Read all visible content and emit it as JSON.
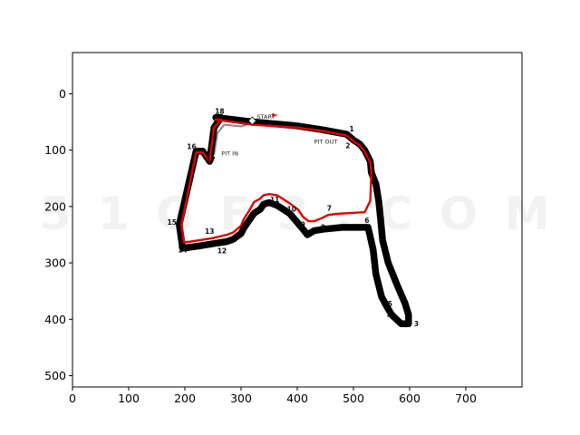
{
  "chart_data": {
    "type": "line",
    "title": "",
    "xlabel": "",
    "ylabel": "",
    "xlim": [
      0,
      800
    ],
    "ylim": [
      520,
      -73
    ],
    "y_inverted": true,
    "x_ticks": [
      0,
      100,
      200,
      300,
      400,
      500,
      600,
      700
    ],
    "y_ticks": [
      0,
      100,
      200,
      300,
      400,
      500
    ],
    "grid": false,
    "watermark": "5 1 G F 3 . C O M",
    "colors": {
      "track": "#000000",
      "racing_line": "#e00000",
      "pit_lane": "#888888",
      "start_flag": "#e8401a"
    },
    "track_outline": {
      "x": [
        255,
        320,
        400,
        445,
        488,
        500,
        512,
        520,
        530,
        532,
        540,
        545,
        548,
        552,
        562,
        578,
        592,
        598,
        598,
        585,
        568,
        558,
        550,
        540,
        535,
        526,
        480,
        448,
        430,
        418,
        410,
        400,
        386,
        364,
        350,
        340,
        334,
        323,
        316,
        305,
        300,
        286,
        275,
        250,
        225,
        196,
        190,
        220,
        228,
        232,
        244,
        252,
        264
      ],
      "y": [
        42,
        50,
        57,
        64,
        72,
        82,
        90,
        100,
        120,
        140,
        160,
        190,
        220,
        260,
        300,
        340,
        372,
        392,
        408,
        408,
        392,
        375,
        360,
        320,
        276,
        237,
        237,
        240,
        243,
        250,
        240,
        228,
        212,
        198,
        193,
        196,
        205,
        212,
        222,
        238,
        248,
        258,
        262,
        266,
        270,
        274,
        232,
        102,
        102,
        102,
        120,
        60,
        42
      ]
    },
    "racing_line": {
      "x": [
        255,
        320,
        400,
        445,
        488,
        500,
        512,
        520,
        530,
        532,
        530,
        520,
        470,
        455,
        445,
        430,
        420,
        410,
        402,
        386,
        364,
        350,
        340,
        334,
        323,
        316,
        305,
        300,
        286,
        275,
        250,
        225,
        198,
        194,
        220,
        228,
        232,
        244,
        252,
        264
      ],
      "y": [
        46,
        55,
        60,
        66,
        74,
        84,
        92,
        102,
        122,
        140,
        190,
        210,
        213,
        215,
        220,
        226,
        226,
        218,
        206,
        194,
        180,
        178,
        180,
        186,
        192,
        205,
        222,
        234,
        246,
        250,
        256,
        260,
        264,
        232,
        104,
        104,
        104,
        120,
        60,
        46
      ]
    },
    "pit_lane": {
      "x": [
        252,
        258,
        270,
        300,
        330
      ],
      "y": [
        108,
        70,
        55,
        58,
        48
      ]
    },
    "corners": [
      {
        "label": "1",
        "x": 497,
        "y": 64
      },
      {
        "label": "2",
        "x": 490,
        "y": 93
      },
      {
        "label": "3",
        "x": 612,
        "y": 409
      },
      {
        "label": "4",
        "x": 564,
        "y": 394
      },
      {
        "label": "5",
        "x": 565,
        "y": 374
      },
      {
        "label": "6",
        "x": 524,
        "y": 226
      },
      {
        "label": "7",
        "x": 457,
        "y": 204
      },
      {
        "label": "8",
        "x": 446,
        "y": 238
      },
      {
        "label": "9",
        "x": 410,
        "y": 233
      },
      {
        "label": "10",
        "x": 390,
        "y": 206
      },
      {
        "label": "11",
        "x": 360,
        "y": 189
      },
      {
        "label": "12",
        "x": 266,
        "y": 280
      },
      {
        "label": "13",
        "x": 244,
        "y": 245
      },
      {
        "label": "14",
        "x": 196,
        "y": 278
      },
      {
        "label": "15",
        "x": 177,
        "y": 229
      },
      {
        "label": "16",
        "x": 212,
        "y": 95
      },
      {
        "label": "17",
        "x": 246,
        "y": 118
      },
      {
        "label": "18",
        "x": 262,
        "y": 32
      }
    ],
    "annotations": [
      {
        "text": "START",
        "x": 328,
        "y": 41
      },
      {
        "text": "PIT IN",
        "x": 265,
        "y": 106
      },
      {
        "text": "PIT OUT",
        "x": 430,
        "y": 85
      }
    ]
  }
}
